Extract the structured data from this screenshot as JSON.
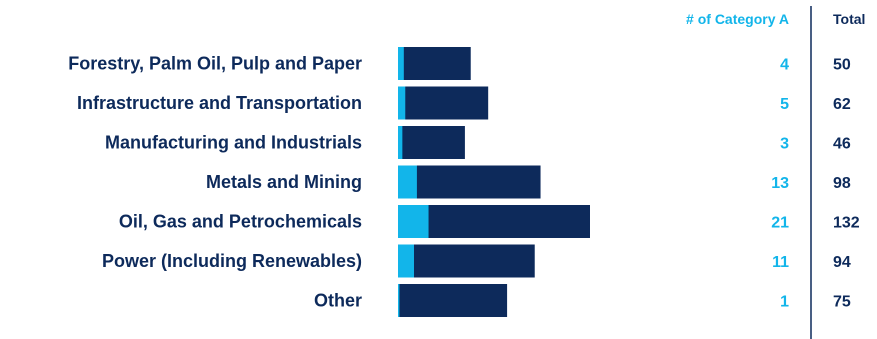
{
  "chart_data": {
    "type": "bar",
    "orientation": "horizontal",
    "stacked": true,
    "categories": [
      "Forestry, Palm Oil, Pulp and Paper",
      "Infrastructure and Transportation",
      "Manufacturing and Industrials",
      "Metals and Mining",
      "Oil, Gas and Petrochemicals",
      "Power (Including Renewables)",
      "Other"
    ],
    "series": [
      {
        "name": "# of Category A",
        "values": [
          4,
          5,
          3,
          13,
          21,
          11,
          1
        ],
        "color": "#12b5ea"
      },
      {
        "name": "Total",
        "values": [
          50,
          62,
          46,
          98,
          132,
          94,
          75
        ],
        "color": "#0d2a5b"
      }
    ],
    "column_headers": {
      "category_a": "# of Category A",
      "total": "Total"
    },
    "xlim": [
      0,
      132
    ],
    "grid": false,
    "legend": "none"
  },
  "colors": {
    "accent": "#12b5ea",
    "navy": "#0d2a5b",
    "divider": "#0d2a5b"
  }
}
